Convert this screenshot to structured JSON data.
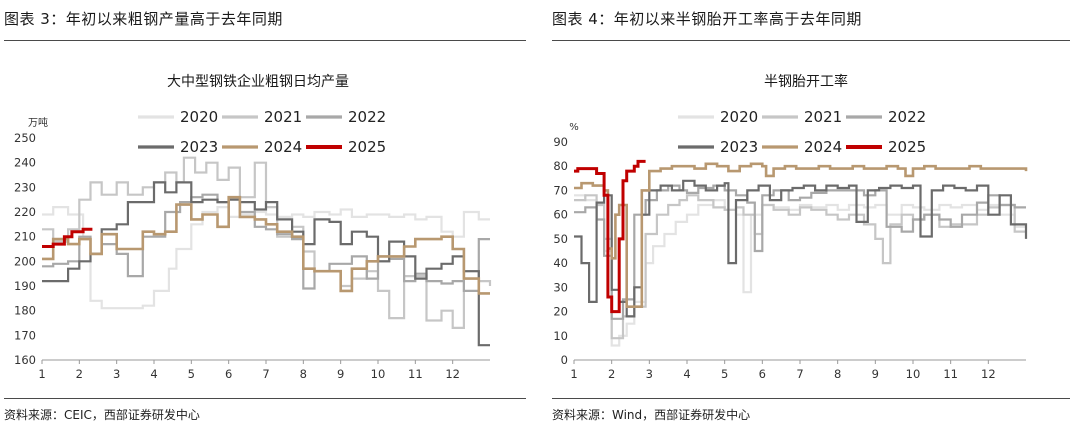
{
  "panels": [
    {
      "figure_title": "图表 3：年初以来粗钢产量高于去年同期",
      "source": "资料来源：CEIC，西部证券研发中心"
    },
    {
      "figure_title": "图表 4：年初以来半钢胎开工率高于去年同期",
      "source": "资料来源：Wind，西部证券研发中心"
    }
  ],
  "series_colors": {
    "2020": "#e3e3e3",
    "2021": "#c6c6c6",
    "2022": "#a8a8a8",
    "2023": "#6b6b6b",
    "2024": "#b89870",
    "2025": "#c00000"
  },
  "chart_data": [
    {
      "type": "line",
      "title": "大中型钢铁企业粗钢日均产量",
      "ylabel": "万吨",
      "xlabel": "",
      "ylim": [
        160,
        250
      ],
      "yticks": [
        160,
        170,
        180,
        190,
        200,
        210,
        220,
        230,
        240,
        250
      ],
      "xlim": [
        1,
        13
      ],
      "xticks": [
        "1",
        "2",
        "3",
        "4",
        "5",
        "6",
        "7",
        "8",
        "9",
        "10",
        "11",
        "12"
      ],
      "grid": false,
      "legend_position": "top",
      "series": [
        {
          "name": "2020",
          "x": [
            1.0,
            1.3,
            1.7,
            2.1,
            2.3,
            2.6,
            3.0,
            3.3,
            3.7,
            4.0,
            4.4,
            4.6,
            5.0,
            5.3,
            5.7,
            6.0,
            6.3,
            6.7,
            7.0,
            7.3,
            7.7,
            8.0,
            8.3,
            8.7,
            9.0,
            9.3,
            9.7,
            10.0,
            10.3,
            10.7,
            11.0,
            11.3,
            11.7,
            12.0,
            12.3,
            12.7,
            13.0
          ],
          "y": [
            219,
            222,
            219,
            210,
            184,
            181,
            181,
            181,
            182,
            188,
            197,
            205,
            215,
            220,
            222,
            218,
            219,
            220,
            219,
            218,
            219,
            218,
            220,
            219,
            221,
            218,
            219,
            219,
            218,
            219,
            217,
            218,
            212,
            210,
            220,
            217,
            217
          ]
        },
        {
          "name": "2021",
          "x": [
            1.0,
            1.3,
            1.7,
            2.0,
            2.3,
            2.6,
            3.0,
            3.3,
            3.7,
            4.0,
            4.3,
            4.6,
            4.8,
            5.1,
            5.4,
            5.7,
            6.0,
            6.3,
            6.7,
            7.0,
            7.3,
            7.7,
            8.0,
            8.3,
            8.7,
            9.0,
            9.3,
            9.7,
            10.0,
            10.3,
            10.7,
            11.0,
            11.3,
            11.7,
            12.0,
            12.3,
            12.7,
            13.0
          ],
          "y": [
            213,
            208,
            213,
            225,
            232,
            227,
            232,
            227,
            230,
            232,
            236,
            232,
            242,
            236,
            240,
            233,
            238,
            226,
            240,
            222,
            210,
            214,
            204,
            196,
            196,
            190,
            193,
            196,
            188,
            177,
            194,
            194,
            176,
            180,
            173,
            196,
            192,
            190
          ]
        },
        {
          "name": "2022",
          "x": [
            1.0,
            1.3,
            1.7,
            2.0,
            2.3,
            2.6,
            3.0,
            3.3,
            3.7,
            4.0,
            4.3,
            4.7,
            5.0,
            5.3,
            5.7,
            6.0,
            6.3,
            6.7,
            7.0,
            7.3,
            7.7,
            8.0,
            8.3,
            8.7,
            9.0,
            9.3,
            9.7,
            10.0,
            10.3,
            10.7,
            11.0,
            11.3,
            11.7,
            12.0,
            12.3,
            12.7,
            13.0
          ],
          "y": [
            198,
            199,
            200,
            210,
            203,
            207,
            203,
            194,
            210,
            210,
            220,
            224,
            226,
            227,
            224,
            226,
            220,
            214,
            213,
            211,
            209,
            189,
            196,
            199,
            199,
            202,
            193,
            200,
            201,
            192,
            195,
            192,
            191,
            192,
            188,
            209,
            209
          ]
        },
        {
          "name": "2023",
          "x": [
            1.0,
            1.3,
            1.7,
            2.0,
            2.3,
            2.6,
            3.0,
            3.3,
            3.7,
            4.0,
            4.3,
            4.6,
            5.0,
            5.3,
            5.7,
            6.0,
            6.3,
            6.7,
            7.0,
            7.3,
            7.7,
            8.0,
            8.3,
            8.7,
            9.0,
            9.3,
            9.7,
            10.0,
            10.3,
            10.7,
            11.0,
            11.3,
            11.7,
            12.0,
            12.3,
            12.7,
            13.0
          ],
          "y": [
            192,
            192,
            197,
            200,
            203,
            213,
            215,
            224,
            224,
            232,
            228,
            232,
            224,
            225,
            224,
            225,
            224,
            221,
            224,
            217,
            212,
            207,
            217,
            216,
            207,
            212,
            210,
            200,
            208,
            202,
            193,
            197,
            199,
            202,
            196,
            166,
            166
          ]
        },
        {
          "name": "2024",
          "x": [
            1.0,
            1.3,
            1.7,
            2.0,
            2.3,
            2.6,
            3.0,
            3.3,
            3.7,
            4.0,
            4.3,
            4.6,
            5.0,
            5.3,
            5.7,
            6.0,
            6.3,
            6.7,
            7.0,
            7.3,
            7.7,
            8.0,
            8.3,
            8.7,
            9.0,
            9.3,
            9.7,
            10.0,
            10.3,
            10.7,
            11.0,
            11.3,
            11.7,
            12.0,
            12.3,
            12.7,
            13.0
          ],
          "y": [
            201,
            209,
            207,
            209,
            203,
            211,
            205,
            205,
            212,
            211,
            212,
            223,
            217,
            219,
            214,
            226,
            218,
            217,
            215,
            212,
            210,
            197,
            196,
            196,
            188,
            197,
            200,
            202,
            202,
            206,
            209,
            209,
            210,
            205,
            193,
            187,
            187
          ]
        },
        {
          "name": "2025",
          "x": [
            1.0,
            1.3,
            1.6,
            1.8,
            2.1,
            2.35
          ],
          "y": [
            206,
            207,
            210,
            212,
            213,
            213
          ]
        }
      ]
    },
    {
      "type": "line",
      "title": "半钢胎开工率",
      "ylabel": "%",
      "xlabel": "",
      "ylim": [
        0,
        90
      ],
      "yticks": [
        0,
        10,
        20,
        30,
        40,
        50,
        60,
        70,
        80,
        90
      ],
      "xlim": [
        1,
        13
      ],
      "xticks": [
        "1",
        "2",
        "3",
        "4",
        "5",
        "6",
        "7",
        "8",
        "9",
        "10",
        "11",
        "12"
      ],
      "grid": false,
      "legend_position": "top",
      "series": [
        {
          "name": "2020",
          "x": [
            1.0,
            1.3,
            1.6,
            1.8,
            2.0,
            2.2,
            2.4,
            2.6,
            2.9,
            3.1,
            3.4,
            3.7,
            4.0,
            4.3,
            4.7,
            5.0,
            5.3,
            5.5,
            5.7,
            6.0,
            6.3,
            6.7,
            7.0,
            7.3,
            7.7,
            8.0,
            8.3,
            8.7,
            9.0,
            9.3,
            9.7,
            10.0,
            10.3,
            10.7,
            11.0,
            11.3,
            11.7,
            12.0,
            12.3,
            12.7,
            13.0
          ],
          "y": [
            68,
            66,
            64,
            45,
            6,
            10,
            15,
            24,
            40,
            47,
            52,
            57,
            60,
            64,
            66,
            62,
            60,
            28,
            60,
            64,
            63,
            62,
            64,
            63,
            64,
            62,
            64,
            63,
            64,
            60,
            64,
            63,
            62,
            64,
            63,
            64,
            62,
            64,
            60,
            55,
            55
          ]
        },
        {
          "name": "2021",
          "x": [
            1.0,
            1.3,
            1.6,
            1.8,
            2.0,
            2.3,
            2.6,
            2.9,
            3.2,
            3.5,
            3.8,
            4.0,
            4.3,
            4.7,
            5.0,
            5.3,
            5.5,
            5.8,
            6.0,
            6.3,
            6.7,
            7.0,
            7.3,
            7.7,
            8.0,
            8.3,
            8.7,
            9.0,
            9.2,
            9.4,
            9.7,
            10.0,
            10.3,
            10.7,
            11.0,
            11.3,
            11.7,
            12.0,
            12.3,
            12.7,
            13.0
          ],
          "y": [
            66,
            68,
            64,
            50,
            9,
            18,
            22,
            52,
            60,
            64,
            66,
            68,
            66,
            63,
            62,
            63,
            60,
            52,
            64,
            62,
            60,
            63,
            62,
            60,
            58,
            60,
            56,
            50,
            40,
            56,
            60,
            58,
            60,
            55,
            56,
            56,
            60,
            63,
            64,
            53,
            53
          ]
        },
        {
          "name": "2022",
          "x": [
            1.0,
            1.3,
            1.6,
            1.8,
            2.0,
            2.3,
            2.6,
            2.9,
            3.2,
            3.5,
            3.8,
            4.0,
            4.3,
            4.7,
            5.0,
            5.3,
            5.6,
            5.8,
            6.0,
            6.3,
            6.7,
            7.0,
            7.3,
            7.7,
            8.0,
            8.3,
            8.7,
            9.0,
            9.3,
            9.7,
            10.0,
            10.3,
            10.7,
            11.0,
            11.3,
            11.7,
            12.0,
            12.3,
            12.7,
            13.0
          ],
          "y": [
            61,
            63,
            58,
            43,
            17,
            25,
            60,
            66,
            70,
            72,
            70,
            69,
            71,
            72,
            70,
            68,
            65,
            45,
            68,
            70,
            66,
            67,
            69,
            70,
            70,
            70,
            68,
            70,
            55,
            53,
            58,
            60,
            58,
            55,
            60,
            65,
            68,
            64,
            63,
            63
          ]
        },
        {
          "name": "2023",
          "x": [
            1.0,
            1.2,
            1.4,
            1.6,
            1.8,
            2.0,
            2.2,
            2.4,
            2.6,
            2.8,
            3.0,
            3.3,
            3.6,
            3.9,
            4.2,
            4.5,
            4.8,
            5.0,
            5.1,
            5.3,
            5.6,
            5.9,
            6.2,
            6.5,
            6.8,
            7.1,
            7.4,
            7.7,
            8.0,
            8.3,
            8.5,
            8.8,
            9.1,
            9.4,
            9.7,
            10.0,
            10.2,
            10.5,
            10.8,
            11.1,
            11.4,
            11.7,
            12.0,
            12.3,
            12.6,
            13.0
          ],
          "y": [
            51,
            40,
            24,
            65,
            68,
            29,
            24,
            18,
            30,
            60,
            70,
            72,
            70,
            74,
            72,
            70,
            72,
            73,
            40,
            66,
            70,
            72,
            66,
            70,
            71,
            72,
            70,
            72,
            71,
            72,
            57,
            70,
            71,
            72,
            71,
            72,
            51,
            70,
            72,
            71,
            70,
            72,
            60,
            68,
            56,
            50
          ]
        },
        {
          "name": "2024",
          "x": [
            1.0,
            1.2,
            1.5,
            1.8,
            1.9,
            2.0,
            2.1,
            2.2,
            2.4,
            2.6,
            2.8,
            3.0,
            3.3,
            3.6,
            3.9,
            4.2,
            4.5,
            4.8,
            5.1,
            5.4,
            5.7,
            6.0,
            6.1,
            6.3,
            6.6,
            6.9,
            7.2,
            7.5,
            7.8,
            8.1,
            8.4,
            8.7,
            9.0,
            9.3,
            9.6,
            9.8,
            10.0,
            10.3,
            10.6,
            10.9,
            11.2,
            11.5,
            11.8,
            12.1,
            12.4,
            12.7,
            13.0
          ],
          "y": [
            71,
            73,
            72,
            70,
            46,
            42,
            60,
            64,
            22,
            22,
            70,
            78,
            79,
            80,
            80,
            79,
            81,
            80,
            78,
            80,
            81,
            80,
            76,
            79,
            80,
            79,
            79,
            80,
            79,
            79,
            80,
            79,
            79,
            80,
            79,
            76,
            79,
            80,
            79,
            79,
            79,
            80,
            79,
            79,
            79,
            79,
            78
          ]
        },
        {
          "name": "2025",
          "x": [
            1.0,
            1.1,
            1.3,
            1.6,
            1.8,
            1.9,
            2.0,
            2.1,
            2.2,
            2.3,
            2.4,
            2.6,
            2.7,
            2.9
          ],
          "y": [
            78,
            79,
            79,
            77,
            68,
            26,
            20,
            20,
            50,
            74,
            78,
            80,
            82,
            82
          ]
        }
      ]
    }
  ]
}
